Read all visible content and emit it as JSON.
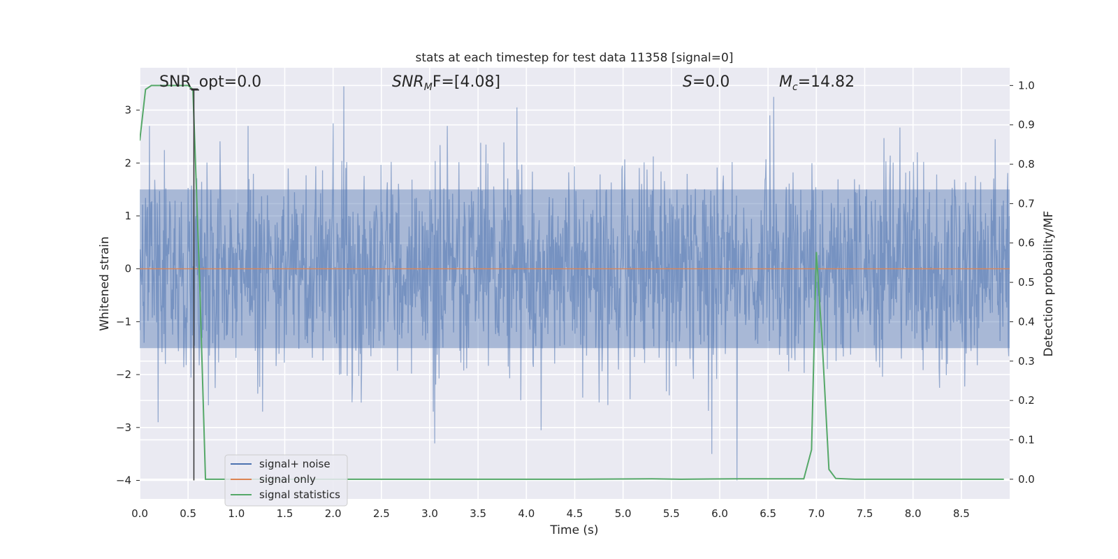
{
  "chart_data": {
    "type": "line",
    "title": "stats at each timestep for test data 11358 [signal=0]",
    "xlabel": "Time (s)",
    "ylabel": "Whitened strain",
    "y2label": "Detection probability/MF",
    "xlim": [
      0,
      9.0
    ],
    "ylim": [
      -4.35,
      3.8
    ],
    "y2lim": [
      -0.05,
      1.045
    ],
    "x_ticks": [
      "0.0",
      "0.5",
      "1.0",
      "1.5",
      "2.0",
      "2.5",
      "3.0",
      "3.5",
      "4.0",
      "4.5",
      "5.0",
      "5.5",
      "6.0",
      "6.5",
      "7.0",
      "7.5",
      "8.0",
      "8.5"
    ],
    "y_ticks": [
      "3",
      "2",
      "1",
      "0",
      "−1",
      "−2",
      "−3",
      "−4"
    ],
    "y2_ticks": [
      "1.0",
      "0.9",
      "0.8",
      "0.7",
      "0.6",
      "0.5",
      "0.4",
      "0.3",
      "0.2",
      "0.1",
      "0.0"
    ],
    "grid": true,
    "legend_position": "lower-left",
    "annotations": {
      "snr_opt": "SNR_opt=0.0",
      "snr_mf_base": "SNR",
      "snr_mf_sub": "M",
      "snr_mf_rest": "F=[4.08]",
      "s_base": "S",
      "s_rest": "=0.0",
      "mc_base": "M",
      "mc_sub": "c",
      "mc_rest": "=14.82"
    },
    "marker_line": {
      "x": 0.56,
      "y_top": 3.4,
      "y_bottom": -4.0
    },
    "series": [
      {
        "name": "signal+ noise",
        "color": "#4c72b0",
        "kind": "noise",
        "duration": 9.0,
        "samples": 1800,
        "typical_min": -1.5,
        "typical_max": 1.5,
        "peaks": [
          {
            "x": 0.19,
            "y": -2.9
          },
          {
            "x": 1.12,
            "y": 2.7
          },
          {
            "x": 2.11,
            "y": 3.45
          },
          {
            "x": 2.0,
            "y": 2.75
          },
          {
            "x": 3.05,
            "y": -3.3
          },
          {
            "x": 3.9,
            "y": 3.05
          },
          {
            "x": 4.15,
            "y": -3.05
          },
          {
            "x": 5.92,
            "y": -3.5
          },
          {
            "x": 6.18,
            "y": -4.0
          },
          {
            "x": 6.56,
            "y": 3.25
          },
          {
            "x": 6.52,
            "y": 2.9
          },
          {
            "x": 8.85,
            "y": 2.45
          }
        ]
      },
      {
        "name": "signal only",
        "color": "#dd8452",
        "kind": "flat",
        "value": 0.0
      },
      {
        "name": "signal statistics",
        "color": "#55a868",
        "kind": "line",
        "axis": "right",
        "points": [
          [
            0.0,
            0.86
          ],
          [
            0.06,
            0.99
          ],
          [
            0.12,
            1.0
          ],
          [
            0.3,
            1.0
          ],
          [
            0.5,
            1.0
          ],
          [
            0.55,
            0.99
          ],
          [
            0.62,
            0.5
          ],
          [
            0.68,
            0.0
          ],
          [
            1.5,
            0.0
          ],
          [
            3.0,
            0.0
          ],
          [
            4.5,
            0.0
          ],
          [
            5.3,
            0.001
          ],
          [
            5.6,
            0.0
          ],
          [
            6.2,
            0.001
          ],
          [
            6.87,
            0.001
          ],
          [
            6.95,
            0.075
          ],
          [
            7.0,
            0.577
          ],
          [
            7.06,
            0.35
          ],
          [
            7.13,
            0.025
          ],
          [
            7.2,
            0.002
          ],
          [
            7.4,
            0.0
          ],
          [
            8.94,
            0.0
          ]
        ]
      }
    ]
  }
}
